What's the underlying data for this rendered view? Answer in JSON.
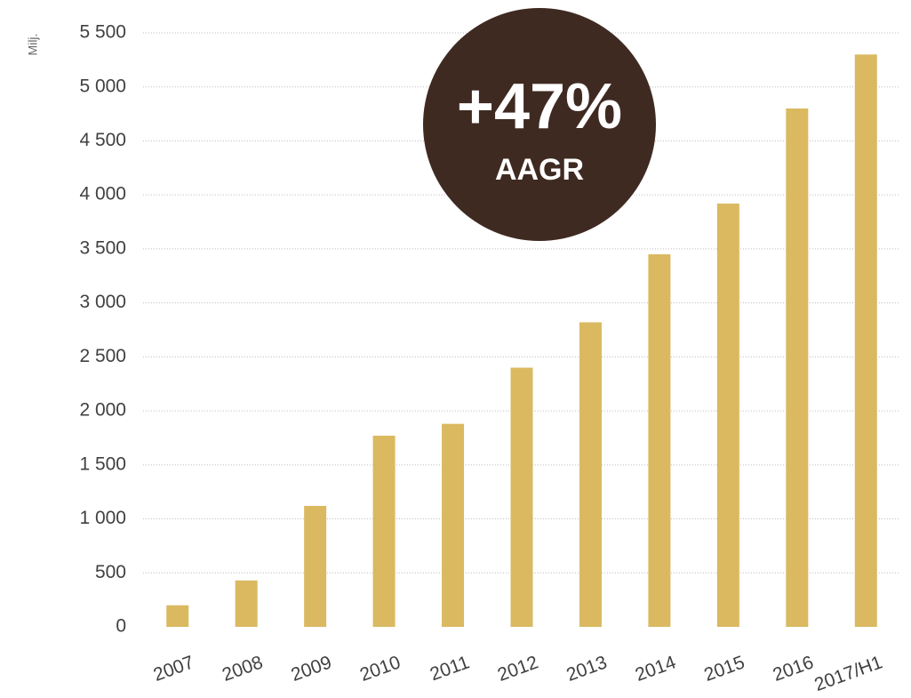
{
  "chart_data": {
    "type": "bar",
    "y_axis_label": "Milj.",
    "categories": [
      "2007",
      "2008",
      "2009",
      "2010",
      "2011",
      "2012",
      "2013",
      "2014",
      "2015",
      "2016",
      "2017/H1"
    ],
    "values": [
      200,
      430,
      1120,
      1770,
      1880,
      2400,
      2820,
      3450,
      3920,
      4800,
      5300
    ],
    "color": "#dab961",
    "ylim": [
      0,
      5500
    ],
    "yticks": [
      0,
      500,
      {
        "value": 1000,
        "label": "1 000"
      },
      {
        "value": 1500,
        "label": "1 500"
      },
      {
        "value": 2000,
        "label": "2 000"
      },
      {
        "value": 2500,
        "label": "2 500"
      },
      {
        "value": 3000,
        "label": "3 000"
      },
      {
        "value": 3500,
        "label": "3 500"
      },
      {
        "value": 4000,
        "label": "4 000"
      },
      {
        "value": 4500,
        "label": "4 500"
      },
      {
        "value": 5000,
        "label": "5 000"
      },
      {
        "value": 5500,
        "label": "5 500"
      }
    ],
    "grid": true,
    "annotation": {
      "headline": "+47%",
      "subline": "AAGR",
      "color": "#3f2a22"
    }
  }
}
